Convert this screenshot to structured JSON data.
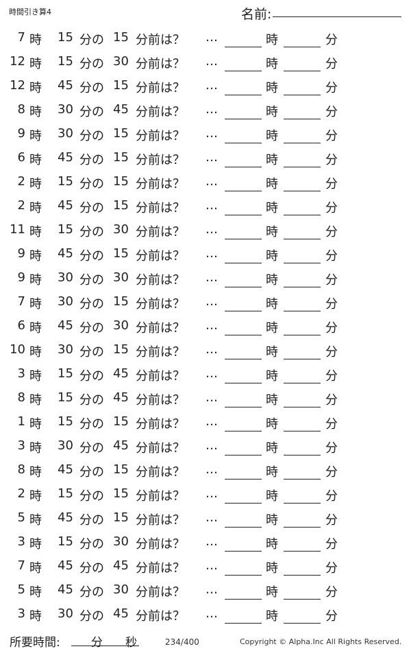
{
  "header": {
    "title": "時間引き算4",
    "name_label": "名前:"
  },
  "labels": {
    "hour": "時",
    "minute_of": "分の",
    "minutes_before": "分前は？",
    "ellipsis": "…",
    "answer_hour": "時",
    "answer_minute": "分"
  },
  "problems": [
    {
      "hour": "7",
      "minute": "15",
      "subtract": "15"
    },
    {
      "hour": "12",
      "minute": "15",
      "subtract": "30"
    },
    {
      "hour": "12",
      "minute": "45",
      "subtract": "15"
    },
    {
      "hour": "8",
      "minute": "30",
      "subtract": "45"
    },
    {
      "hour": "9",
      "minute": "30",
      "subtract": "15"
    },
    {
      "hour": "6",
      "minute": "45",
      "subtract": "15"
    },
    {
      "hour": "2",
      "minute": "15",
      "subtract": "15"
    },
    {
      "hour": "2",
      "minute": "45",
      "subtract": "15"
    },
    {
      "hour": "11",
      "minute": "15",
      "subtract": "30"
    },
    {
      "hour": "9",
      "minute": "45",
      "subtract": "15"
    },
    {
      "hour": "9",
      "minute": "30",
      "subtract": "30"
    },
    {
      "hour": "7",
      "minute": "30",
      "subtract": "15"
    },
    {
      "hour": "6",
      "minute": "45",
      "subtract": "30"
    },
    {
      "hour": "10",
      "minute": "30",
      "subtract": "15"
    },
    {
      "hour": "3",
      "minute": "15",
      "subtract": "45"
    },
    {
      "hour": "8",
      "minute": "15",
      "subtract": "45"
    },
    {
      "hour": "1",
      "minute": "15",
      "subtract": "15"
    },
    {
      "hour": "3",
      "minute": "30",
      "subtract": "45"
    },
    {
      "hour": "8",
      "minute": "45",
      "subtract": "15"
    },
    {
      "hour": "2",
      "minute": "15",
      "subtract": "15"
    },
    {
      "hour": "5",
      "minute": "45",
      "subtract": "15"
    },
    {
      "hour": "3",
      "minute": "15",
      "subtract": "30"
    },
    {
      "hour": "7",
      "minute": "45",
      "subtract": "45"
    },
    {
      "hour": "5",
      "minute": "45",
      "subtract": "30"
    },
    {
      "hour": "3",
      "minute": "30",
      "subtract": "45"
    }
  ],
  "footer": {
    "required_time_label": "所要時間:",
    "minutes_unit": "分",
    "seconds_unit": "秒",
    "page": "234/400",
    "copyright": "Copyright ©  Alpha.Inc All Rights Reserved."
  }
}
